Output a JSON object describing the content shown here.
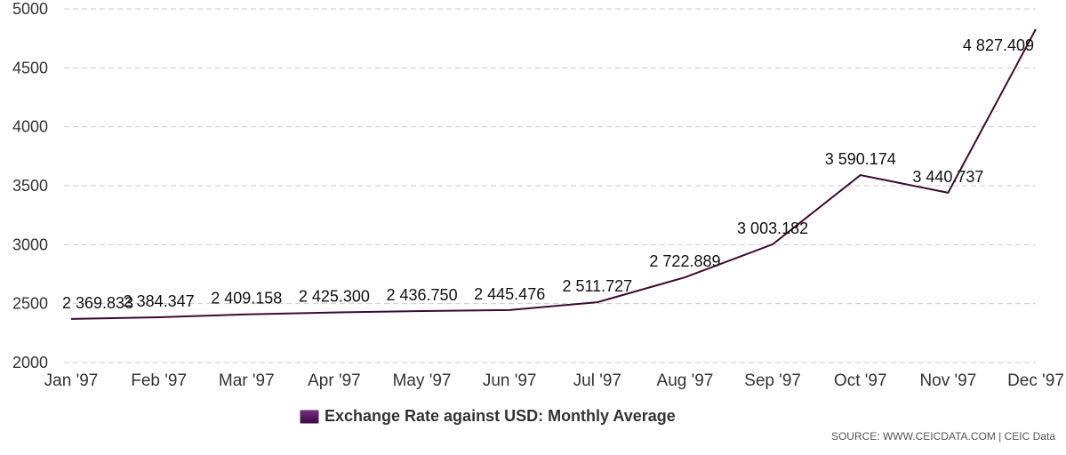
{
  "chart_data": {
    "type": "line",
    "categories": [
      "Jan '97",
      "Feb '97",
      "Mar '97",
      "Apr '97",
      "May '97",
      "Jun '97",
      "Jul '97",
      "Aug '97",
      "Sep '97",
      "Oct '97",
      "Nov '97",
      "Dec '97"
    ],
    "series": [
      {
        "name": "Exchange Rate against USD: Monthly Average",
        "values": [
          2369.833,
          2384.347,
          2409.158,
          2425.3,
          2436.75,
          2445.476,
          2511.727,
          2722.889,
          3003.182,
          3590.174,
          3440.737,
          4827.409
        ],
        "labels": [
          "2 369.833",
          "2 384.347",
          "2 409.158",
          "2 425.300",
          "2 436.750",
          "2 445.476",
          "2 511.727",
          "2 722.889",
          "3 003.182",
          "3 590.174",
          "3 440.737",
          "4 827.409"
        ],
        "color": "#3d0a2e"
      }
    ],
    "y_ticks": [
      "2000",
      "2500",
      "3000",
      "3500",
      "4000",
      "4500",
      "5000"
    ],
    "ylim": [
      2000,
      5000
    ],
    "grid": true,
    "legend_position": "bottom"
  },
  "legend": {
    "label": "Exchange Rate against USD: Monthly Average",
    "color": "#6a1b76"
  },
  "source": "SOURCE: WWW.CEICDATA.COM | CEIC Data"
}
